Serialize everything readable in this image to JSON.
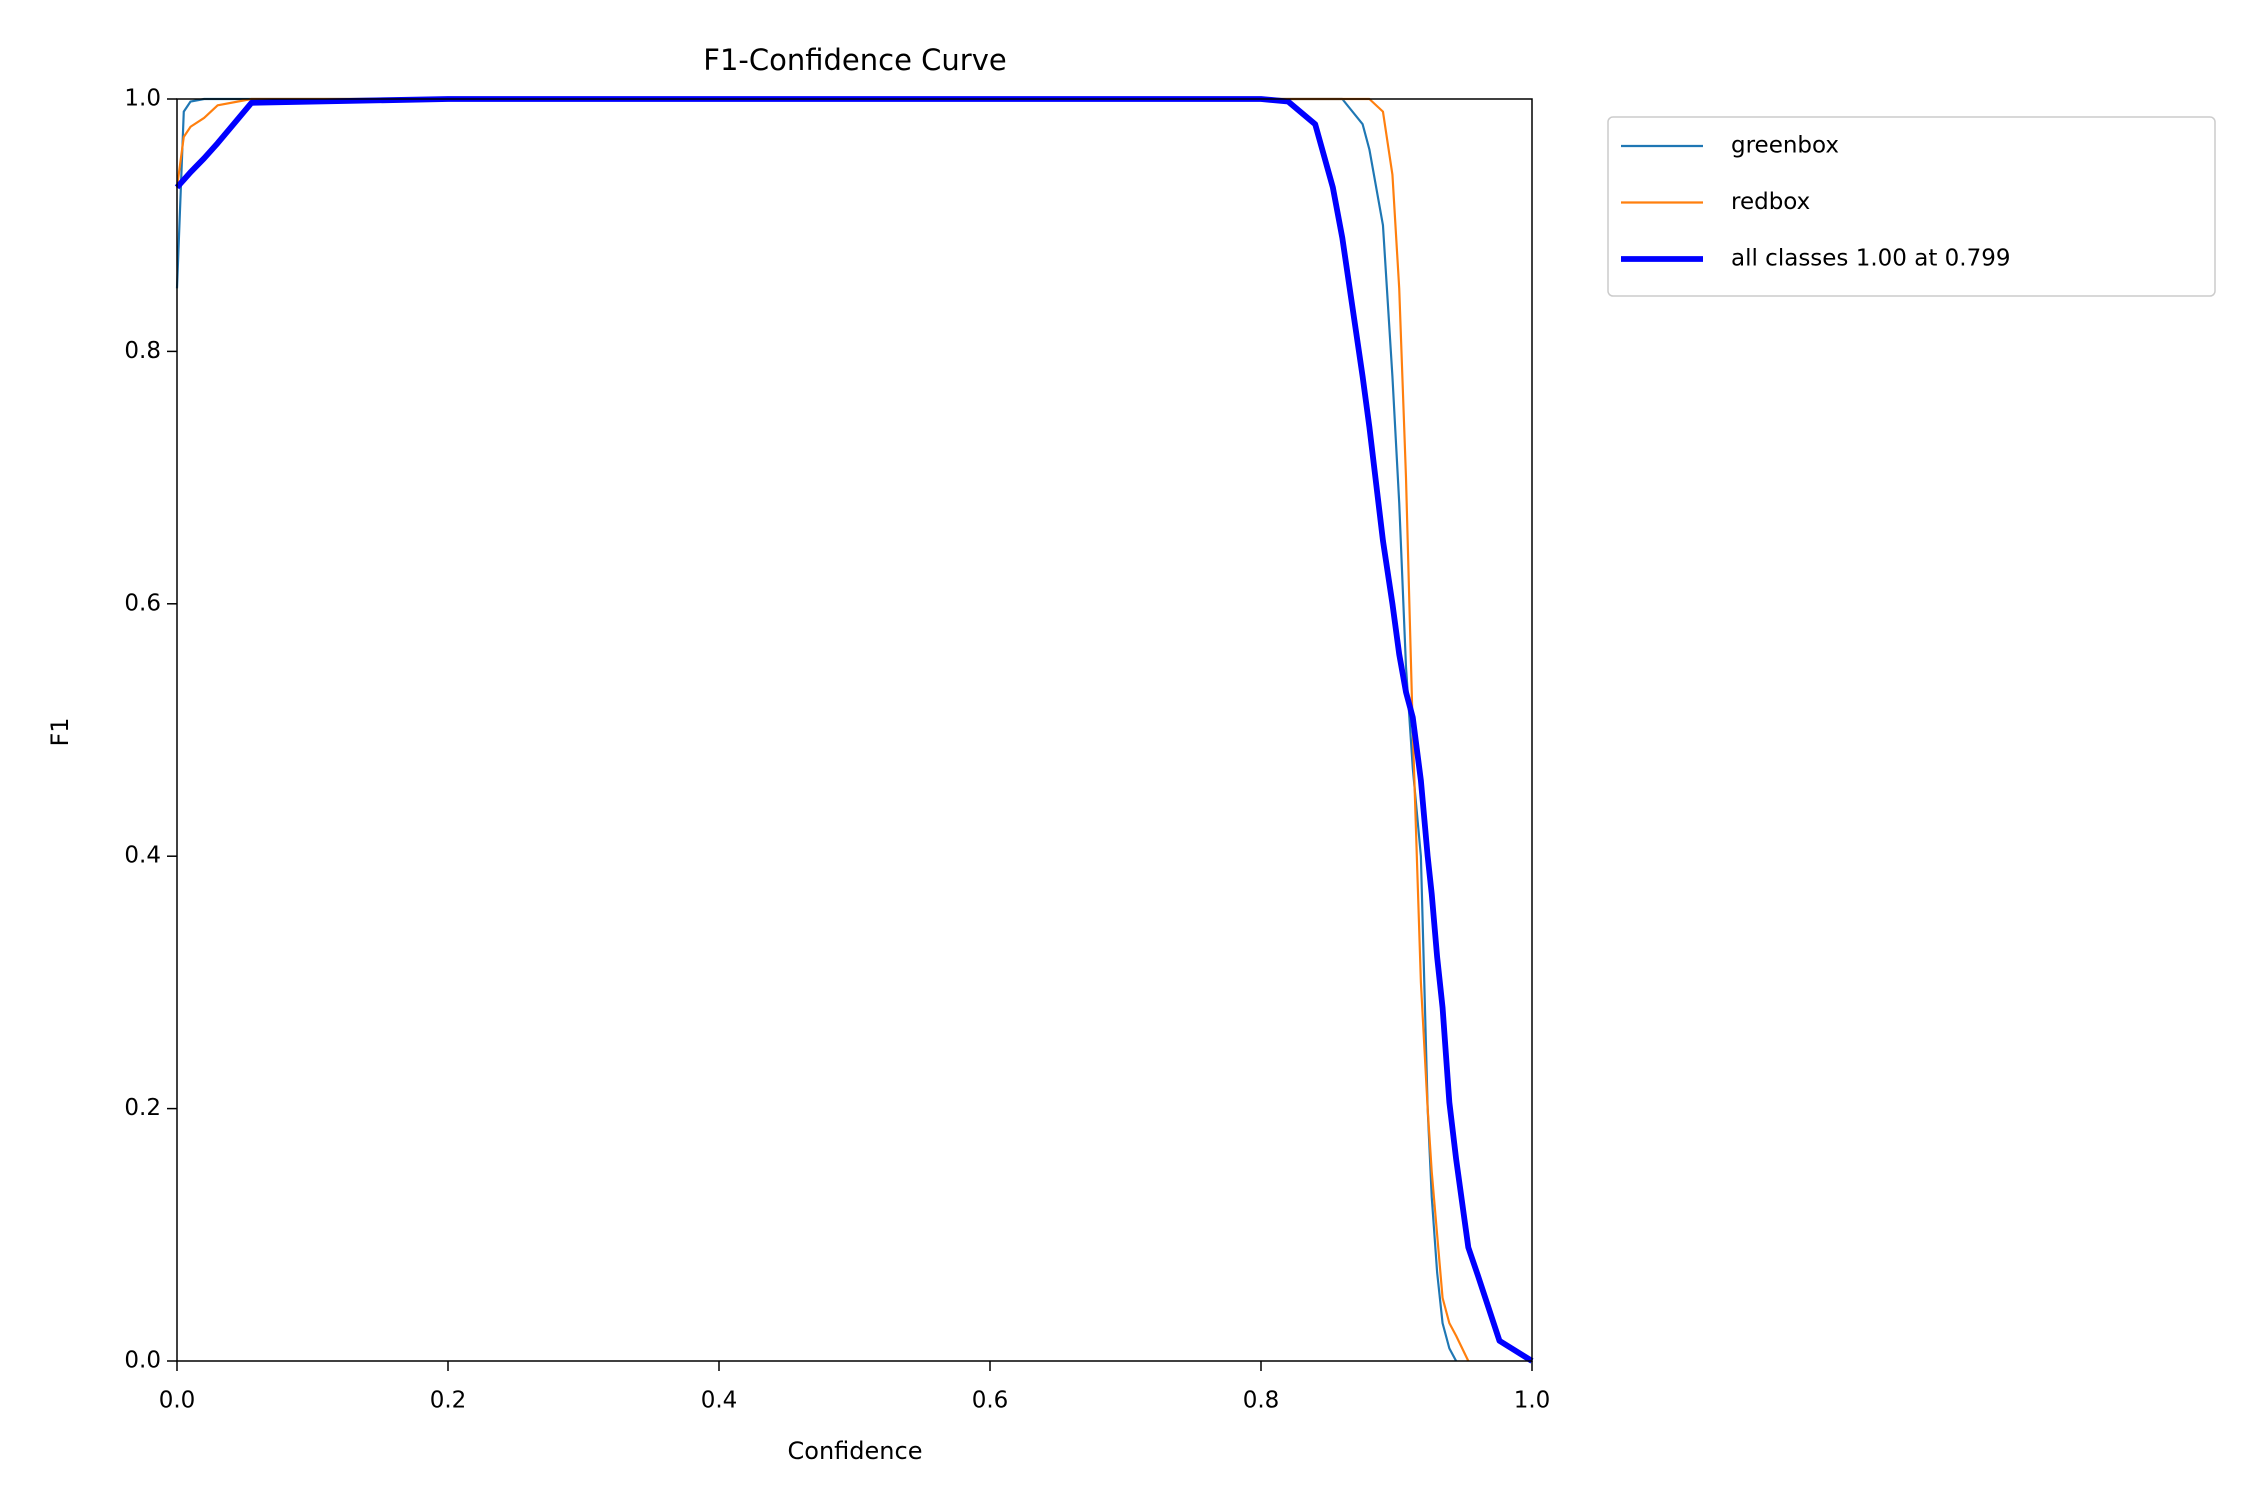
{
  "chart_data": {
    "type": "line",
    "title": "F1-Confidence Curve",
    "x_label": "Confidence",
    "y_label": "F1",
    "x": [
      0,
      0.005,
      0.01,
      0.02,
      0.03,
      0.055,
      0.2,
      0.4,
      0.6,
      0.8,
      0.82,
      0.84,
      0.853,
      0.86,
      0.875,
      0.88,
      0.89,
      0.897,
      0.902,
      0.907,
      0.912,
      0.918,
      0.923,
      0.926,
      0.93,
      0.934,
      0.939,
      0.944,
      0.953,
      0.96,
      0.976,
      1.0
    ],
    "series": [
      {
        "name": "greenbox",
        "color": "#1f77b4",
        "linewidth": 1.5,
        "values": [
          0.85,
          0.99,
          0.998,
          1,
          1,
          1,
          1,
          1,
          1,
          1,
          1,
          1,
          1,
          1,
          0.98,
          0.96,
          0.9,
          0.78,
          0.68,
          0.55,
          0.47,
          0.4,
          0.2,
          0.13,
          0.07,
          0.03,
          0.01,
          0,
          null,
          null,
          null,
          null
        ]
      },
      {
        "name": "redbox",
        "color": "#ff7f0e",
        "linewidth": 1.5,
        "values": [
          0.93,
          0.97,
          0.978,
          0.985,
          0.995,
          1,
          1,
          1,
          1,
          1,
          1,
          1,
          1,
          1,
          1,
          1,
          0.99,
          0.94,
          0.85,
          0.7,
          0.5,
          0.3,
          0.2,
          0.15,
          0.1,
          0.05,
          0.03,
          0.02,
          0,
          null,
          null,
          null
        ]
      },
      {
        "name": "all classes 1.00 at 0.799",
        "color": "#0000ff",
        "linewidth": 4,
        "values": [
          0.93,
          0.936,
          0.942,
          0.953,
          0.965,
          0.997,
          1,
          1,
          1,
          1,
          0.998,
          0.98,
          0.93,
          0.89,
          0.78,
          0.74,
          0.65,
          0.6,
          0.56,
          0.53,
          0.51,
          0.46,
          0.4,
          0.37,
          0.32,
          0.28,
          0.205,
          0.16,
          0.09,
          0.068,
          0.016,
          0
        ]
      }
    ],
    "xlim": [
      0,
      1
    ],
    "ylim": [
      0,
      1
    ],
    "xticks": [
      {
        "value": 0,
        "label": "0.0"
      },
      0.2,
      0.4,
      0.6,
      0.8,
      {
        "value": 1,
        "label": "1.0"
      }
    ],
    "yticks": [
      {
        "value": 0,
        "label": "0.0"
      },
      0.2,
      0.4,
      0.6,
      0.8,
      {
        "value": 1,
        "label": "1.0"
      }
    ],
    "grid": false,
    "legend": "outside-upper-right"
  }
}
